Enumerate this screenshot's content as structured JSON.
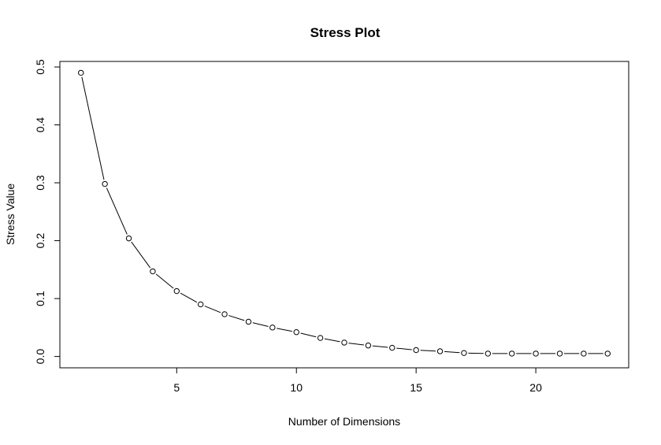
{
  "chart_data": {
    "type": "line",
    "title": "Stress Plot",
    "xlabel": "Number of Dimensions",
    "ylabel": "Stress Value",
    "xlim": [
      0.12,
      23.88
    ],
    "ylim": [
      -0.0196,
      0.5096
    ],
    "xticks": [
      5,
      10,
      15,
      20
    ],
    "yticks": [
      0.0,
      0.1,
      0.2,
      0.3,
      0.4,
      0.5
    ],
    "xtick_labels": [
      "5",
      "10",
      "15",
      "20"
    ],
    "ytick_labels": [
      "0.0",
      "0.1",
      "0.2",
      "0.3",
      "0.4",
      "0.5"
    ],
    "grid": false,
    "series": [
      {
        "marker": "open-circle",
        "x": [
          1,
          2,
          3,
          4,
          5,
          6,
          7,
          8,
          9,
          10,
          11,
          12,
          13,
          14,
          15,
          16,
          17,
          18,
          19,
          20,
          21,
          22,
          23
        ],
        "y": [
          0.49,
          0.298,
          0.204,
          0.147,
          0.113,
          0.09,
          0.073,
          0.06,
          0.05,
          0.042,
          0.032,
          0.024,
          0.019,
          0.015,
          0.011,
          0.009,
          0.006,
          0.005,
          0.005,
          0.005,
          0.005,
          0.005,
          0.005
        ]
      }
    ]
  }
}
